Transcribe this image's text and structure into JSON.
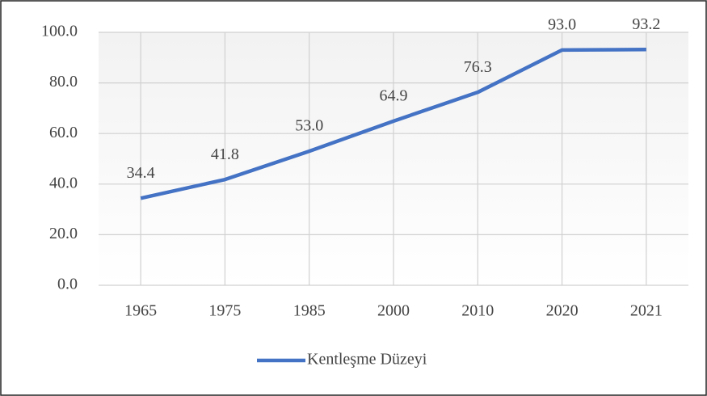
{
  "chart_data": {
    "type": "line",
    "categories": [
      "1965",
      "1975",
      "1985",
      "2000",
      "2010",
      "2020",
      "2021"
    ],
    "series": [
      {
        "name": "Kentleşme Düzeyi",
        "color": "#4472c4",
        "values": [
          34.4,
          41.8,
          53.0,
          64.9,
          76.3,
          93.0,
          93.2
        ],
        "value_labels": [
          "34.4",
          "41.8",
          "53.0",
          "64.9",
          "76.3",
          "93.0",
          "93.2"
        ]
      }
    ],
    "ylim": [
      0,
      100
    ],
    "yticks": [
      {
        "value": 0,
        "label": "0.0"
      },
      {
        "value": 20,
        "label": "20.0"
      },
      {
        "value": 40,
        "label": "40.0"
      },
      {
        "value": 60,
        "label": "60.0"
      },
      {
        "value": 80,
        "label": "80.0"
      },
      {
        "value": 100,
        "label": "100.0"
      }
    ],
    "grid": true,
    "legend": "bottom"
  }
}
